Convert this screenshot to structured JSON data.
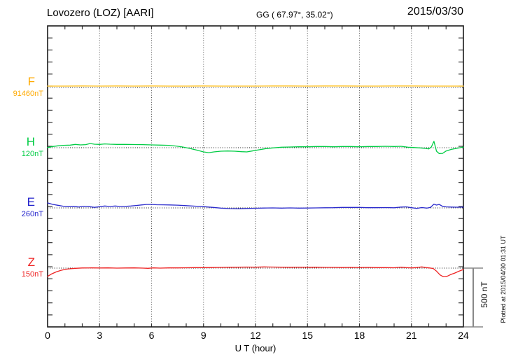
{
  "header": {
    "station_title": "Lovozero (LOZ)  [AARI]",
    "gg_coords": "GG ( 67.97°,  35.02°)",
    "date": "2015/03/30"
  },
  "axis": {
    "xaxis_label": "U T (hour)",
    "x_tick_labels": [
      "0",
      "3",
      "6",
      "9",
      "12",
      "15",
      "18",
      "21",
      "24"
    ]
  },
  "scalebar": {
    "label": "500 nT"
  },
  "footer_note": {
    "plotted_at": "Plotted at 2015/04/30 01:31 UT"
  },
  "chart_data": {
    "type": "line",
    "title": "Lovozero (LOZ) [AARI] magnetogram 2015/03/30",
    "xlabel": "U T (hour)",
    "x_range": [
      0,
      24
    ],
    "x_major_ticks": [
      0,
      3,
      6,
      9,
      12,
      15,
      18,
      21,
      24
    ],
    "x_minor_tick_step_hours": 1,
    "y_tick_step_nT": 100,
    "scalebar_nT": 500,
    "grid": "dotted vertical lines every 3 h; dotted horizontal baseline per channel",
    "points_format": "[hour_UT, offset_nT_from_channel_baseline]",
    "series": [
      {
        "name": "F",
        "label": "F",
        "baseline_label": "91460nT",
        "baseline_nT": 91460,
        "color": "#FFAA00",
        "line_color": "#FFC93F",
        "points": [
          [
            0,
            12
          ],
          [
            1,
            12
          ],
          [
            2,
            13
          ],
          [
            3,
            12
          ],
          [
            4,
            13
          ],
          [
            5,
            12
          ],
          [
            6,
            13
          ],
          [
            7,
            12
          ],
          [
            8,
            12
          ],
          [
            9,
            13
          ],
          [
            10,
            12
          ],
          [
            11,
            12
          ],
          [
            12,
            12
          ],
          [
            13,
            13
          ],
          [
            14,
            13
          ],
          [
            15,
            12
          ],
          [
            16,
            13
          ],
          [
            17,
            13
          ],
          [
            18,
            12
          ],
          [
            19,
            12
          ],
          [
            20,
            13
          ],
          [
            21,
            13
          ],
          [
            22,
            12
          ],
          [
            23,
            12
          ],
          [
            24,
            12
          ]
        ]
      },
      {
        "name": "H",
        "label": "H",
        "baseline_label": "120nT",
        "baseline_nT": 120,
        "color": "#00CC44",
        "line_color": "#00CC44",
        "points": [
          [
            0,
            2
          ],
          [
            0.3,
            10
          ],
          [
            0.6,
            16
          ],
          [
            0.9,
            20
          ],
          [
            1.3,
            22
          ],
          [
            1.6,
            28
          ],
          [
            1.9,
            24
          ],
          [
            2.2,
            26
          ],
          [
            2.45,
            36
          ],
          [
            2.7,
            30
          ],
          [
            3,
            28
          ],
          [
            3.3,
            32
          ],
          [
            3.6,
            30
          ],
          [
            4,
            28
          ],
          [
            4.5,
            28
          ],
          [
            5,
            27
          ],
          [
            5.5,
            26
          ],
          [
            6,
            24
          ],
          [
            6.5,
            22
          ],
          [
            7,
            20
          ],
          [
            7.4,
            14
          ],
          [
            7.8,
            6
          ],
          [
            8.2,
            -6
          ],
          [
            8.6,
            -20
          ],
          [
            9,
            -36
          ],
          [
            9.3,
            -42
          ],
          [
            9.6,
            -36
          ],
          [
            10,
            -30
          ],
          [
            10.4,
            -28
          ],
          [
            10.8,
            -30
          ],
          [
            11.2,
            -34
          ],
          [
            11.5,
            -36
          ],
          [
            11.8,
            -28
          ],
          [
            12.2,
            -18
          ],
          [
            12.6,
            -8
          ],
          [
            13,
            -2
          ],
          [
            13.5,
            4
          ],
          [
            14,
            6
          ],
          [
            14.5,
            8
          ],
          [
            15,
            8
          ],
          [
            15.5,
            10
          ],
          [
            16,
            10
          ],
          [
            16.5,
            8
          ],
          [
            17,
            10
          ],
          [
            17.5,
            10
          ],
          [
            18,
            8
          ],
          [
            18.5,
            10
          ],
          [
            19,
            10
          ],
          [
            19.5,
            12
          ],
          [
            20,
            10
          ],
          [
            20.4,
            12
          ],
          [
            20.8,
            4
          ],
          [
            21.1,
            2
          ],
          [
            21.5,
            -2
          ],
          [
            21.8,
            -6
          ],
          [
            22,
            -10
          ],
          [
            22.15,
            6
          ],
          [
            22.3,
            54
          ],
          [
            22.45,
            -30
          ],
          [
            22.6,
            -50
          ],
          [
            22.8,
            -48
          ],
          [
            23,
            -28
          ],
          [
            23.3,
            -14
          ],
          [
            23.6,
            -6
          ],
          [
            24,
            6
          ]
        ]
      },
      {
        "name": "E",
        "label": "E",
        "baseline_label": "260nT",
        "baseline_nT": 260,
        "color": "#2222CC",
        "line_color": "#2A2ACC",
        "points": [
          [
            0,
            42
          ],
          [
            0.3,
            30
          ],
          [
            0.6,
            22
          ],
          [
            0.9,
            14
          ],
          [
            1.2,
            10
          ],
          [
            1.5,
            13
          ],
          [
            1.8,
            8
          ],
          [
            2.1,
            14
          ],
          [
            2.4,
            11
          ],
          [
            2.7,
            5
          ],
          [
            3,
            10
          ],
          [
            3.3,
            16
          ],
          [
            3.6,
            12
          ],
          [
            3.9,
            16
          ],
          [
            4.2,
            12
          ],
          [
            4.5,
            13
          ],
          [
            4.8,
            16
          ],
          [
            5.1,
            20
          ],
          [
            5.4,
            25
          ],
          [
            5.7,
            29
          ],
          [
            6,
            29
          ],
          [
            6.3,
            27
          ],
          [
            6.7,
            26
          ],
          [
            7.1,
            25
          ],
          [
            7.5,
            23
          ],
          [
            8,
            19
          ],
          [
            8.5,
            15
          ],
          [
            9,
            11
          ],
          [
            9.5,
            5
          ],
          [
            10,
            -2
          ],
          [
            10.5,
            -6
          ],
          [
            11,
            -8
          ],
          [
            11.5,
            -5
          ],
          [
            12,
            -3
          ],
          [
            12.5,
            -1
          ],
          [
            13,
            0
          ],
          [
            13.5,
            -2
          ],
          [
            14,
            0
          ],
          [
            14.5,
            -2
          ],
          [
            15,
            -1
          ],
          [
            15.5,
            0
          ],
          [
            16,
            1
          ],
          [
            16.5,
            2
          ],
          [
            17,
            4
          ],
          [
            17.5,
            4
          ],
          [
            18,
            4
          ],
          [
            18.5,
            2
          ],
          [
            19,
            2
          ],
          [
            19.5,
            3
          ],
          [
            20,
            1
          ],
          [
            20.4,
            7
          ],
          [
            20.7,
            9
          ],
          [
            21,
            2
          ],
          [
            21.3,
            -4
          ],
          [
            21.6,
            3
          ],
          [
            21.9,
            -2
          ],
          [
            22.1,
            5
          ],
          [
            22.3,
            32
          ],
          [
            22.45,
            24
          ],
          [
            22.6,
            30
          ],
          [
            22.8,
            13
          ],
          [
            23,
            9
          ],
          [
            23.3,
            7
          ],
          [
            23.7,
            6
          ],
          [
            24,
            7
          ]
        ]
      },
      {
        "name": "Z",
        "label": "Z",
        "baseline_label": "150nT",
        "baseline_nT": 150,
        "color": "#EE2222",
        "line_color": "#EE2222",
        "points": [
          [
            0,
            -70
          ],
          [
            0.25,
            -48
          ],
          [
            0.5,
            -32
          ],
          [
            0.8,
            -18
          ],
          [
            1.1,
            -9
          ],
          [
            1.4,
            -4
          ],
          [
            1.7,
            -1
          ],
          [
            2,
            1
          ],
          [
            2.5,
            2
          ],
          [
            3,
            1
          ],
          [
            3.5,
            2
          ],
          [
            4,
            0
          ],
          [
            4.5,
            1
          ],
          [
            5,
            2
          ],
          [
            5.5,
            0
          ],
          [
            5.8,
            -2
          ],
          [
            6.1,
            2
          ],
          [
            6.5,
            0
          ],
          [
            7,
            2
          ],
          [
            7.5,
            2
          ],
          [
            8,
            3
          ],
          [
            8.5,
            4
          ],
          [
            9,
            4
          ],
          [
            9.5,
            5
          ],
          [
            10,
            6
          ],
          [
            10.5,
            7
          ],
          [
            11,
            8
          ],
          [
            11.5,
            9
          ],
          [
            12,
            8
          ],
          [
            12.5,
            10
          ],
          [
            13,
            9
          ],
          [
            13.5,
            8
          ],
          [
            14,
            7
          ],
          [
            14.5,
            8
          ],
          [
            15,
            7
          ],
          [
            15.5,
            8
          ],
          [
            16,
            6
          ],
          [
            16.5,
            6
          ],
          [
            17,
            5
          ],
          [
            17.5,
            6
          ],
          [
            18,
            5
          ],
          [
            18.5,
            6
          ],
          [
            19,
            4
          ],
          [
            19.5,
            4
          ],
          [
            20,
            3
          ],
          [
            20.4,
            8
          ],
          [
            20.7,
            4
          ],
          [
            21,
            2
          ],
          [
            21.3,
            5
          ],
          [
            21.6,
            10
          ],
          [
            21.85,
            4
          ],
          [
            22.05,
            1
          ],
          [
            22.25,
            -3
          ],
          [
            22.45,
            -26
          ],
          [
            22.65,
            -58
          ],
          [
            22.85,
            -74
          ],
          [
            23.05,
            -70
          ],
          [
            23.25,
            -56
          ],
          [
            23.5,
            -42
          ],
          [
            23.75,
            -26
          ],
          [
            24,
            -12
          ]
        ]
      }
    ]
  }
}
